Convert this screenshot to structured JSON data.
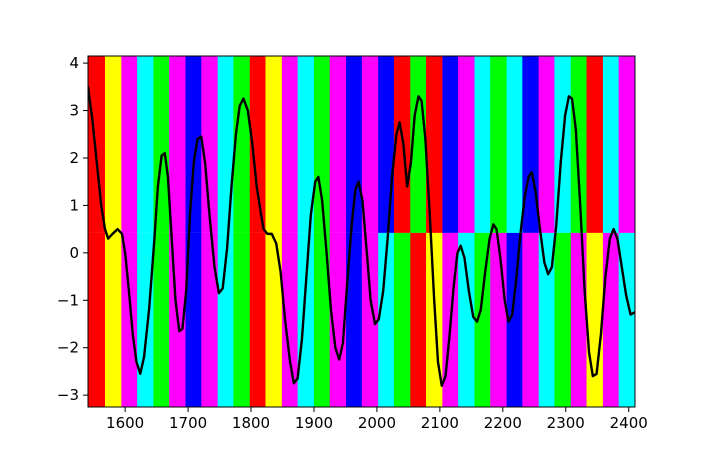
{
  "chart_data": {
    "type": "line",
    "title": "",
    "xlabel": "",
    "ylabel": "",
    "xlim": [
      1541,
      2410
    ],
    "ylim": [
      -3.25,
      4.15
    ],
    "grid": false,
    "legend": "none",
    "x_ticks": [
      1600,
      1700,
      1800,
      1900,
      2000,
      2100,
      2200,
      2300,
      2400
    ],
    "y_ticks": [
      -3,
      -2,
      -1,
      0,
      1,
      2,
      3,
      4
    ],
    "split_y": 0.42,
    "colors": {
      "r": "#ff0000",
      "y": "#ffff00",
      "c": "#00ffff",
      "g": "#00ff00",
      "m": "#ff00ff",
      "b": "#0000ff",
      "line": "#000000"
    },
    "bands_upper": [
      {
        "x0": 1541,
        "x1": 1568,
        "color": "r"
      },
      {
        "x0": 1568,
        "x1": 1594,
        "color": "y"
      },
      {
        "x0": 1594,
        "x1": 1619,
        "color": "m"
      },
      {
        "x0": 1619,
        "x1": 1645,
        "color": "c"
      },
      {
        "x0": 1645,
        "x1": 1670,
        "color": "g"
      },
      {
        "x0": 1670,
        "x1": 1696,
        "color": "m"
      },
      {
        "x0": 1696,
        "x1": 1721,
        "color": "b"
      },
      {
        "x0": 1721,
        "x1": 1747,
        "color": "m"
      },
      {
        "x0": 1747,
        "x1": 1772,
        "color": "c"
      },
      {
        "x0": 1772,
        "x1": 1798,
        "color": "g"
      },
      {
        "x0": 1798,
        "x1": 1823,
        "color": "r"
      },
      {
        "x0": 1823,
        "x1": 1849,
        "color": "y"
      },
      {
        "x0": 1849,
        "x1": 1874,
        "color": "m"
      },
      {
        "x0": 1874,
        "x1": 1900,
        "color": "c"
      },
      {
        "x0": 1900,
        "x1": 1925,
        "color": "g"
      },
      {
        "x0": 1925,
        "x1": 1951,
        "color": "m"
      },
      {
        "x0": 1951,
        "x1": 1976,
        "color": "b"
      },
      {
        "x0": 1976,
        "x1": 2002,
        "color": "m"
      },
      {
        "x0": 2002,
        "x1": 2027,
        "color": "b"
      },
      {
        "x0": 2027,
        "x1": 2053,
        "color": "r"
      },
      {
        "x0": 2053,
        "x1": 2078,
        "color": "g"
      },
      {
        "x0": 2078,
        "x1": 2104,
        "color": "r"
      },
      {
        "x0": 2104,
        "x1": 2129,
        "color": "b"
      },
      {
        "x0": 2129,
        "x1": 2155,
        "color": "m"
      },
      {
        "x0": 2155,
        "x1": 2180,
        "color": "c"
      },
      {
        "x0": 2180,
        "x1": 2206,
        "color": "g"
      },
      {
        "x0": 2206,
        "x1": 2231,
        "color": "c"
      },
      {
        "x0": 2231,
        "x1": 2257,
        "color": "b"
      },
      {
        "x0": 2257,
        "x1": 2282,
        "color": "m"
      },
      {
        "x0": 2282,
        "x1": 2308,
        "color": "c"
      },
      {
        "x0": 2308,
        "x1": 2333,
        "color": "g"
      },
      {
        "x0": 2333,
        "x1": 2359,
        "color": "r"
      },
      {
        "x0": 2359,
        "x1": 2384,
        "color": "c"
      },
      {
        "x0": 2384,
        "x1": 2410,
        "color": "m"
      }
    ],
    "bands_lower": [
      {
        "x0": 1541,
        "x1": 1568,
        "color": "r"
      },
      {
        "x0": 1568,
        "x1": 1594,
        "color": "y"
      },
      {
        "x0": 1594,
        "x1": 1619,
        "color": "m"
      },
      {
        "x0": 1619,
        "x1": 1645,
        "color": "c"
      },
      {
        "x0": 1645,
        "x1": 1670,
        "color": "g"
      },
      {
        "x0": 1670,
        "x1": 1696,
        "color": "m"
      },
      {
        "x0": 1696,
        "x1": 1721,
        "color": "b"
      },
      {
        "x0": 1721,
        "x1": 1747,
        "color": "m"
      },
      {
        "x0": 1747,
        "x1": 1772,
        "color": "c"
      },
      {
        "x0": 1772,
        "x1": 1798,
        "color": "g"
      },
      {
        "x0": 1798,
        "x1": 1823,
        "color": "r"
      },
      {
        "x0": 1823,
        "x1": 1849,
        "color": "y"
      },
      {
        "x0": 1849,
        "x1": 1874,
        "color": "m"
      },
      {
        "x0": 1874,
        "x1": 1900,
        "color": "c"
      },
      {
        "x0": 1900,
        "x1": 1925,
        "color": "g"
      },
      {
        "x0": 1925,
        "x1": 1951,
        "color": "m"
      },
      {
        "x0": 1951,
        "x1": 1976,
        "color": "b"
      },
      {
        "x0": 1976,
        "x1": 2002,
        "color": "m"
      },
      {
        "x0": 2002,
        "x1": 2027,
        "color": "c"
      },
      {
        "x0": 2027,
        "x1": 2053,
        "color": "g"
      },
      {
        "x0": 2053,
        "x1": 2078,
        "color": "r"
      },
      {
        "x0": 2078,
        "x1": 2104,
        "color": "y"
      },
      {
        "x0": 2104,
        "x1": 2129,
        "color": "m"
      },
      {
        "x0": 2129,
        "x1": 2155,
        "color": "c"
      },
      {
        "x0": 2155,
        "x1": 2180,
        "color": "g"
      },
      {
        "x0": 2180,
        "x1": 2206,
        "color": "m"
      },
      {
        "x0": 2206,
        "x1": 2231,
        "color": "b"
      },
      {
        "x0": 2231,
        "x1": 2257,
        "color": "m"
      },
      {
        "x0": 2257,
        "x1": 2282,
        "color": "c"
      },
      {
        "x0": 2282,
        "x1": 2308,
        "color": "g"
      },
      {
        "x0": 2308,
        "x1": 2333,
        "color": "m"
      },
      {
        "x0": 2333,
        "x1": 2359,
        "color": "y"
      },
      {
        "x0": 2359,
        "x1": 2384,
        "color": "m"
      },
      {
        "x0": 2384,
        "x1": 2410,
        "color": "c"
      }
    ],
    "series": [
      {
        "color": "#000000",
        "points": [
          [
            1541,
            3.5
          ],
          [
            1548,
            2.8
          ],
          [
            1555,
            1.9
          ],
          [
            1562,
            1.0
          ],
          [
            1568,
            0.5
          ],
          [
            1573,
            0.3
          ],
          [
            1580,
            0.4
          ],
          [
            1588,
            0.5
          ],
          [
            1595,
            0.4
          ],
          [
            1600,
            0.0
          ],
          [
            1606,
            -0.8
          ],
          [
            1612,
            -1.7
          ],
          [
            1618,
            -2.3
          ],
          [
            1624,
            -2.55
          ],
          [
            1630,
            -2.2
          ],
          [
            1638,
            -1.2
          ],
          [
            1646,
            0.2
          ],
          [
            1652,
            1.4
          ],
          [
            1658,
            2.05
          ],
          [
            1663,
            2.1
          ],
          [
            1668,
            1.6
          ],
          [
            1674,
            0.3
          ],
          [
            1680,
            -1.0
          ],
          [
            1686,
            -1.65
          ],
          [
            1691,
            -1.6
          ],
          [
            1697,
            -0.8
          ],
          [
            1703,
            0.8
          ],
          [
            1709,
            1.9
          ],
          [
            1715,
            2.4
          ],
          [
            1721,
            2.45
          ],
          [
            1727,
            1.9
          ],
          [
            1734,
            0.8
          ],
          [
            1742,
            -0.3
          ],
          [
            1749,
            -0.85
          ],
          [
            1755,
            -0.75
          ],
          [
            1762,
            0.1
          ],
          [
            1769,
            1.4
          ],
          [
            1776,
            2.5
          ],
          [
            1782,
            3.1
          ],
          [
            1788,
            3.25
          ],
          [
            1795,
            3.0
          ],
          [
            1802,
            2.3
          ],
          [
            1809,
            1.4
          ],
          [
            1816,
            0.8
          ],
          [
            1820,
            0.5
          ],
          [
            1826,
            0.4
          ],
          [
            1833,
            0.4
          ],
          [
            1840,
            0.2
          ],
          [
            1847,
            -0.4
          ],
          [
            1854,
            -1.4
          ],
          [
            1862,
            -2.3
          ],
          [
            1868,
            -2.75
          ],
          [
            1874,
            -2.65
          ],
          [
            1881,
            -1.8
          ],
          [
            1888,
            -0.5
          ],
          [
            1895,
            0.8
          ],
          [
            1902,
            1.5
          ],
          [
            1907,
            1.6
          ],
          [
            1913,
            1.1
          ],
          [
            1920,
            0.0
          ],
          [
            1927,
            -1.2
          ],
          [
            1934,
            -2.0
          ],
          [
            1940,
            -2.25
          ],
          [
            1946,
            -1.9
          ],
          [
            1953,
            -0.6
          ],
          [
            1960,
            0.6
          ],
          [
            1966,
            1.35
          ],
          [
            1971,
            1.5
          ],
          [
            1977,
            1.1
          ],
          [
            1984,
            0.0
          ],
          [
            1990,
            -1.0
          ],
          [
            1997,
            -1.5
          ],
          [
            2003,
            -1.4
          ],
          [
            2010,
            -0.8
          ],
          [
            2017,
            0.3
          ],
          [
            2024,
            1.6
          ],
          [
            2031,
            2.5
          ],
          [
            2036,
            2.75
          ],
          [
            2042,
            2.3
          ],
          [
            2048,
            1.4
          ],
          [
            2054,
            1.9
          ],
          [
            2060,
            2.9
          ],
          [
            2066,
            3.3
          ],
          [
            2071,
            3.2
          ],
          [
            2077,
            2.4
          ],
          [
            2084,
            0.8
          ],
          [
            2091,
            -1.0
          ],
          [
            2097,
            -2.3
          ],
          [
            2103,
            -2.8
          ],
          [
            2109,
            -2.6
          ],
          [
            2115,
            -1.8
          ],
          [
            2122,
            -0.7
          ],
          [
            2128,
            0.0
          ],
          [
            2133,
            0.15
          ],
          [
            2139,
            -0.1
          ],
          [
            2146,
            -0.8
          ],
          [
            2153,
            -1.35
          ],
          [
            2159,
            -1.45
          ],
          [
            2165,
            -1.2
          ],
          [
            2172,
            -0.4
          ],
          [
            2179,
            0.3
          ],
          [
            2185,
            0.6
          ],
          [
            2190,
            0.5
          ],
          [
            2196,
            -0.1
          ],
          [
            2203,
            -1.0
          ],
          [
            2209,
            -1.45
          ],
          [
            2215,
            -1.3
          ],
          [
            2221,
            -0.6
          ],
          [
            2228,
            0.4
          ],
          [
            2235,
            1.2
          ],
          [
            2241,
            1.6
          ],
          [
            2246,
            1.7
          ],
          [
            2252,
            1.3
          ],
          [
            2259,
            0.5
          ],
          [
            2266,
            -0.2
          ],
          [
            2272,
            -0.45
          ],
          [
            2278,
            -0.3
          ],
          [
            2285,
            0.6
          ],
          [
            2292,
            1.9
          ],
          [
            2299,
            2.9
          ],
          [
            2305,
            3.3
          ],
          [
            2310,
            3.25
          ],
          [
            2316,
            2.6
          ],
          [
            2323,
            1.0
          ],
          [
            2330,
            -0.8
          ],
          [
            2337,
            -2.1
          ],
          [
            2343,
            -2.6
          ],
          [
            2349,
            -2.55
          ],
          [
            2356,
            -1.7
          ],
          [
            2363,
            -0.5
          ],
          [
            2370,
            0.3
          ],
          [
            2376,
            0.5
          ],
          [
            2382,
            0.3
          ],
          [
            2389,
            -0.3
          ],
          [
            2396,
            -0.9
          ],
          [
            2403,
            -1.3
          ],
          [
            2410,
            -1.25
          ]
        ]
      }
    ]
  }
}
